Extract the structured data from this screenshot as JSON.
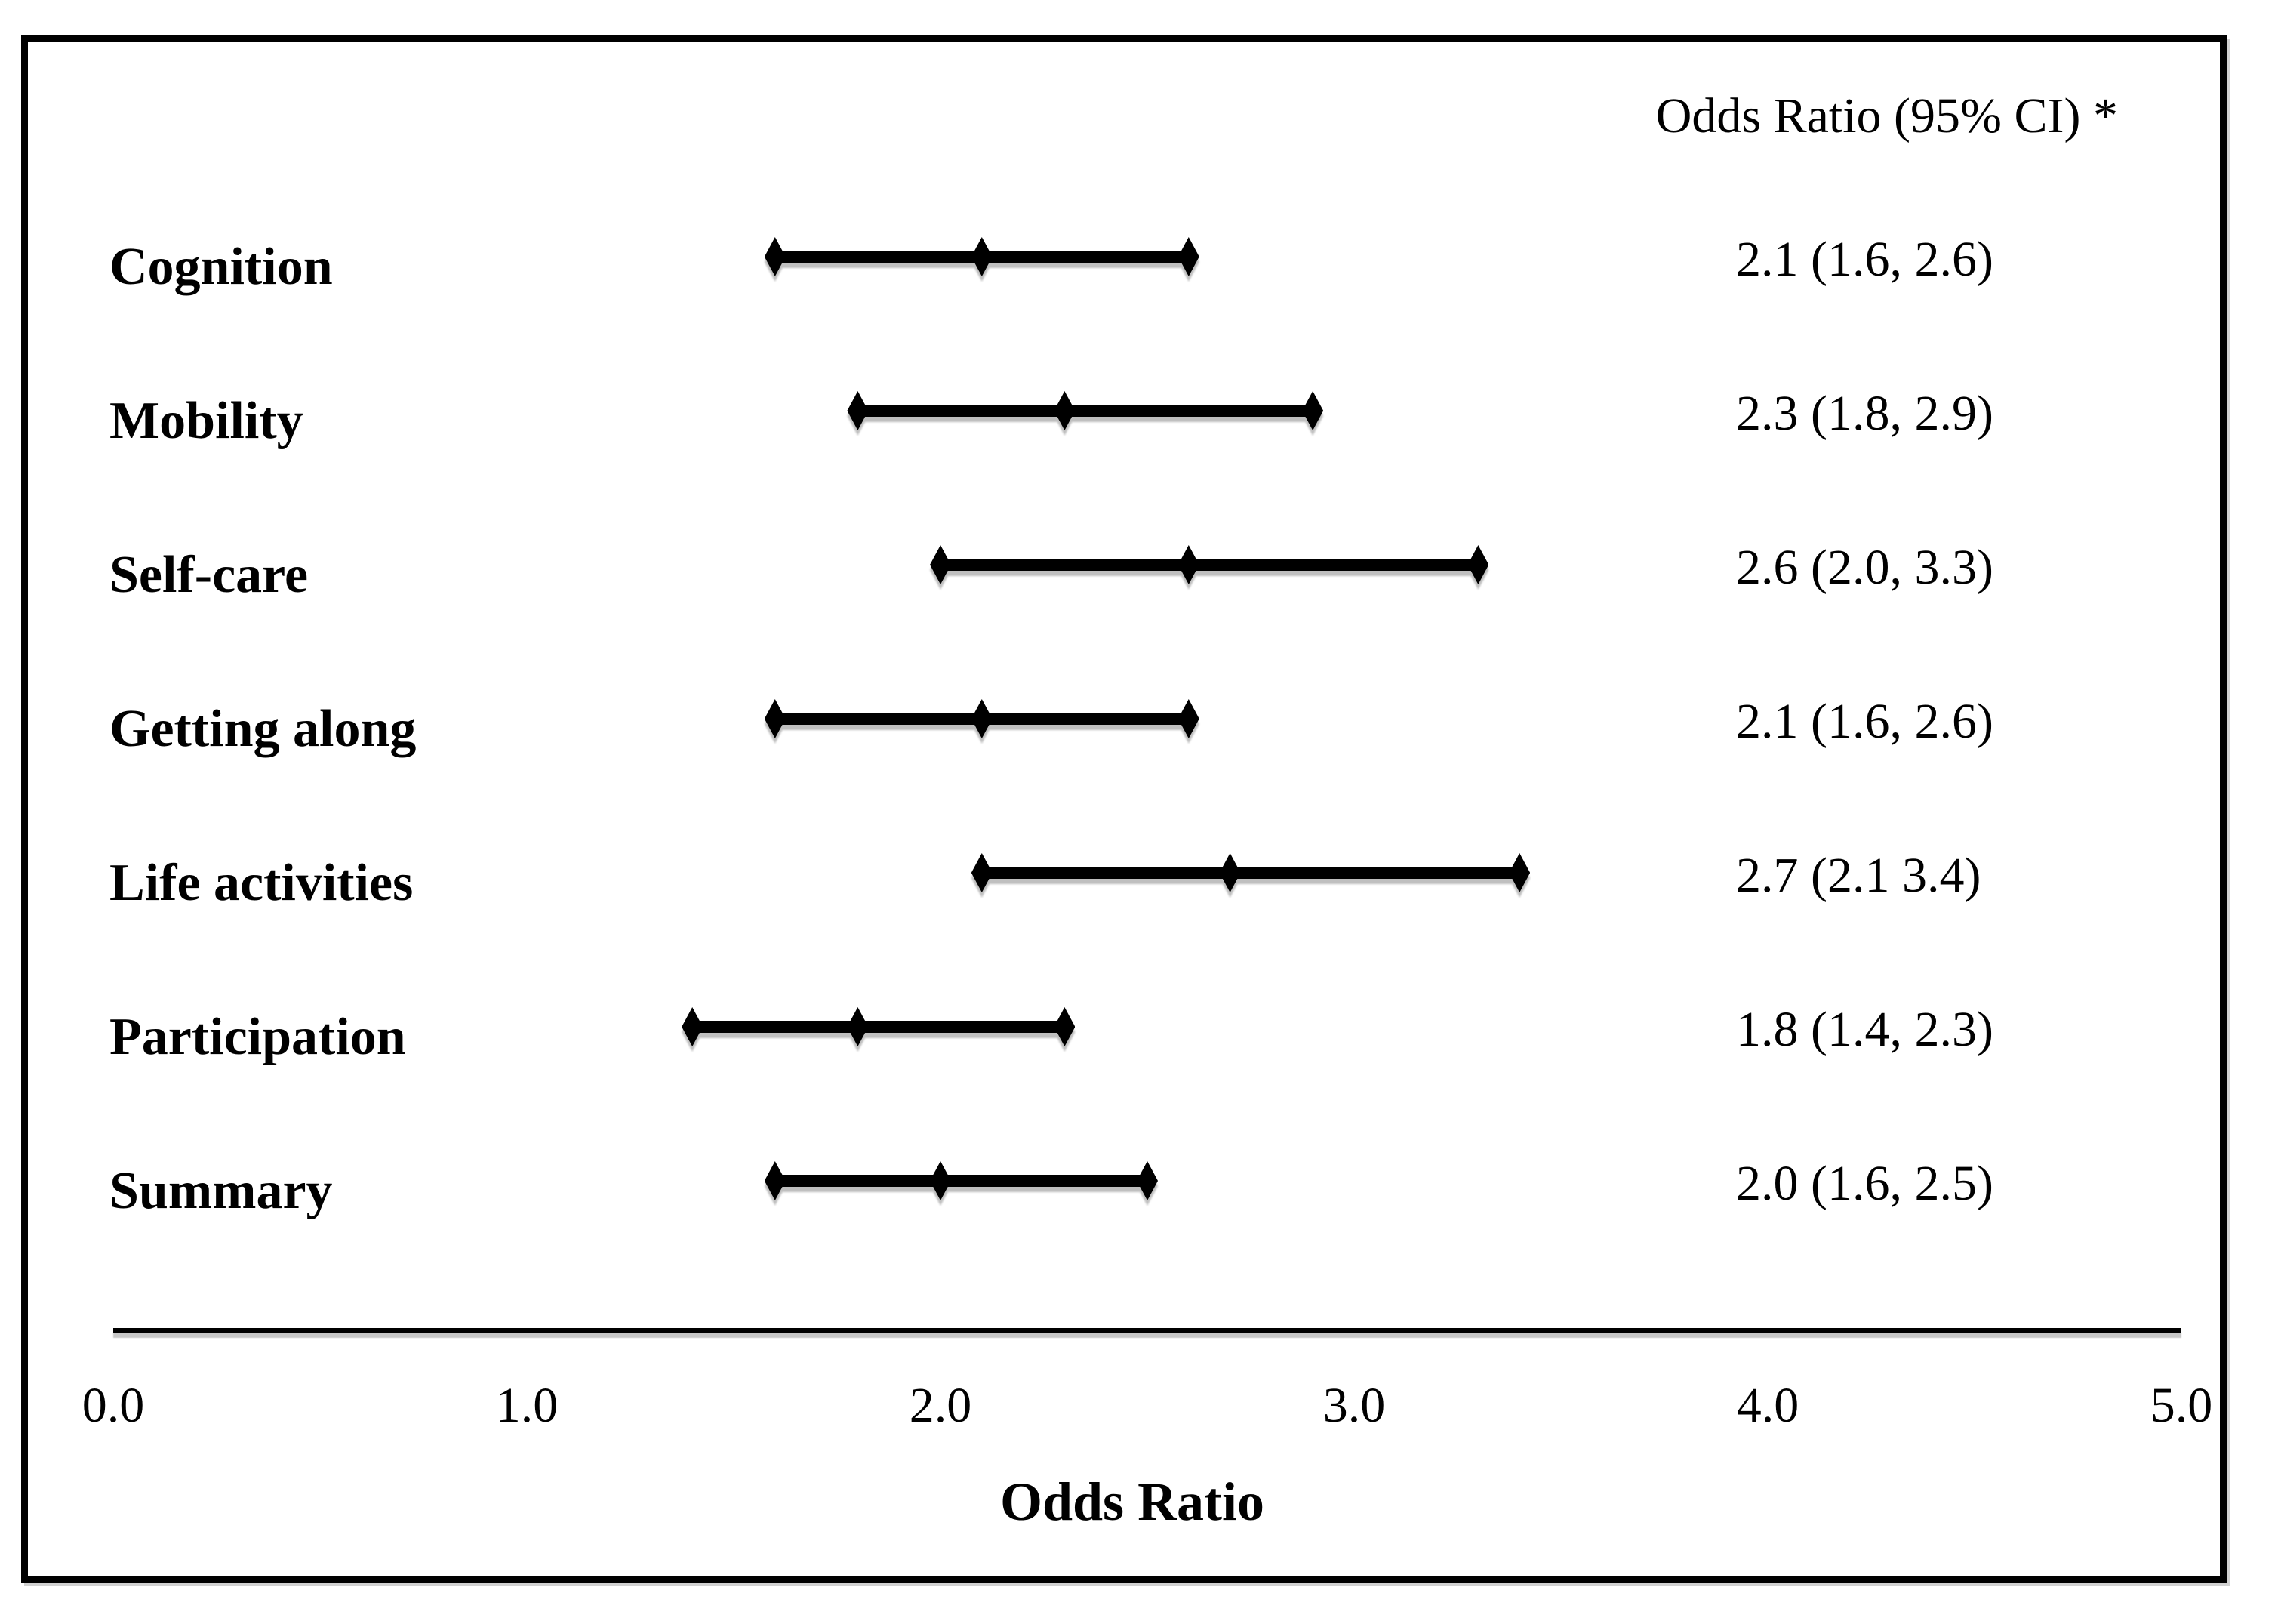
{
  "colors": {
    "ink": "#000000",
    "background": "#ffffff",
    "shadow": "#c4c4c4"
  },
  "chart_data": {
    "type": "forest",
    "or_ci_column_header": "Odds Ratio (95% CI) *",
    "xlabel": "Odds Ratio",
    "x_ticks": [
      "0.0",
      "1.0",
      "2.0",
      "3.0",
      "4.0",
      "5.0"
    ],
    "xlim": [
      0.0,
      5.0
    ],
    "grid": false,
    "marker": "diamond",
    "rows": [
      {
        "label": "Cognition",
        "or": 2.1,
        "ci_low": 1.6,
        "ci_high": 2.6,
        "value_text": "2.1 (1.6, 2.6)"
      },
      {
        "label": "Mobility",
        "or": 2.3,
        "ci_low": 1.8,
        "ci_high": 2.9,
        "value_text": "2.3 (1.8, 2.9)"
      },
      {
        "label": "Self-care",
        "or": 2.6,
        "ci_low": 2.0,
        "ci_high": 3.3,
        "value_text": "2.6 (2.0, 3.3)"
      },
      {
        "label": "Getting along",
        "or": 2.1,
        "ci_low": 1.6,
        "ci_high": 2.6,
        "value_text": "2.1 (1.6, 2.6)"
      },
      {
        "label": "Life activities",
        "or": 2.7,
        "ci_low": 2.1,
        "ci_high": 3.4,
        "value_text": "2.7 (2.1 3.4)"
      },
      {
        "label": "Participation",
        "or": 1.8,
        "ci_low": 1.4,
        "ci_high": 2.3,
        "value_text": "1.8 (1.4, 2.3)"
      },
      {
        "label": "Summary",
        "or": 2.0,
        "ci_low": 1.6,
        "ci_high": 2.5,
        "value_text": "2.0 (1.6, 2.5)"
      }
    ]
  }
}
